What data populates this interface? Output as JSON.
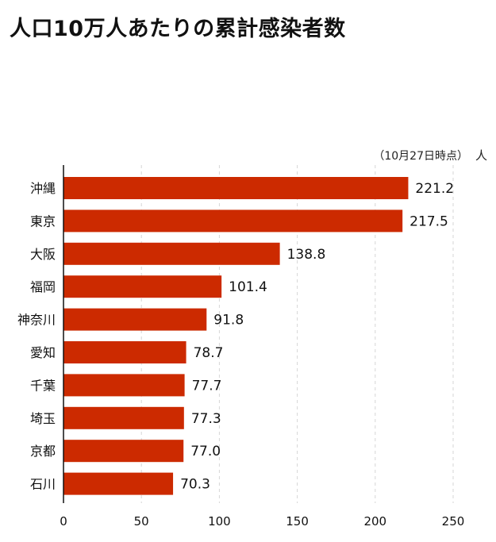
{
  "title": "人口10万人あたりの累計感染者数",
  "chart_data": {
    "type": "bar",
    "orientation": "horizontal",
    "title": "人口10万人あたりの累計感染者数",
    "note": "（10月27日時点）",
    "unit": "人",
    "categories": [
      "沖縄",
      "東京",
      "大阪",
      "福岡",
      "神奈川",
      "愛知",
      "千葉",
      "埼玉",
      "京都",
      "石川"
    ],
    "values": [
      221.2,
      217.5,
      138.8,
      101.4,
      91.8,
      78.7,
      77.7,
      77.3,
      77.0,
      70.3
    ],
    "value_labels": [
      "221.2",
      "217.5",
      "138.8",
      "101.4",
      "91.8",
      "78.7",
      "77.7",
      "77.3",
      "77.0",
      "70.3"
    ],
    "xlim": [
      0,
      250
    ],
    "xticks": [
      0,
      50,
      100,
      150,
      200,
      250
    ],
    "grid": "vertical-dashed",
    "bar_color": "#cc2a00"
  }
}
